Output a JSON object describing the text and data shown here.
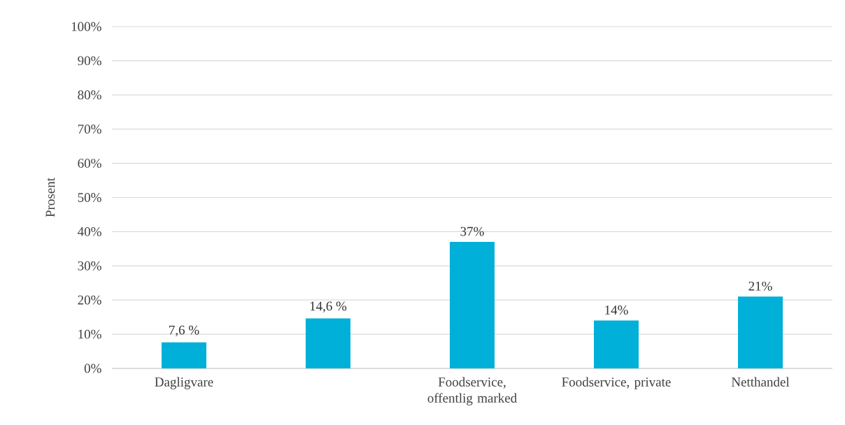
{
  "chart_data": {
    "type": "bar",
    "ylabel": "Prosent",
    "categories": [
      "Dagligvare",
      null,
      "Foodservice, offentlig marked",
      "Foodservice, private",
      "Netthandel"
    ],
    "values": [
      7.6,
      14.6,
      37,
      14,
      21
    ],
    "value_labels": [
      "7,6 %",
      "14,6 %",
      "37%",
      "14%",
      "21%"
    ],
    "color": "#00b0d8",
    "ylim": [
      0,
      100
    ],
    "yticks": [
      {
        "value": 0,
        "label": "0%"
      },
      {
        "value": 10,
        "label": "10%"
      },
      {
        "value": 20,
        "label": "20%"
      },
      {
        "value": 30,
        "label": "30%"
      },
      {
        "value": 40,
        "label": "40%"
      },
      {
        "value": 50,
        "label": "50%"
      },
      {
        "value": 60,
        "label": "60%"
      },
      {
        "value": 70,
        "label": "70%"
      },
      {
        "value": 80,
        "label": "80%"
      },
      {
        "value": 90,
        "label": "90%"
      },
      {
        "value": 100,
        "label": "100%"
      }
    ],
    "grid": "y"
  }
}
